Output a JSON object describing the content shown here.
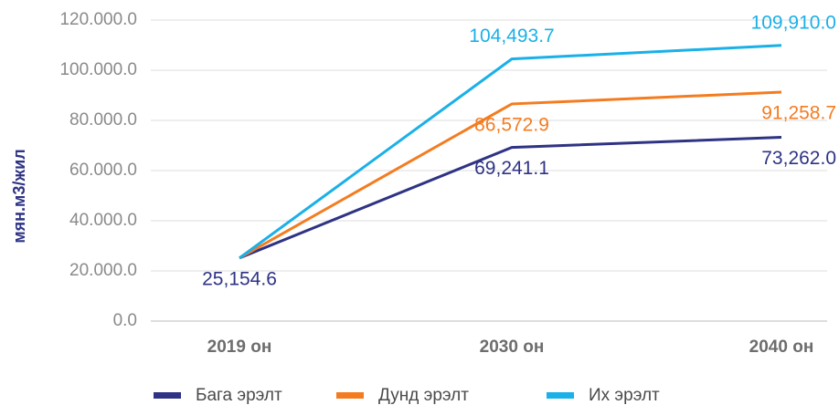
{
  "chart_data": {
    "type": "line",
    "y_label": "мян.м3/жил",
    "categories": [
      "2019 он",
      "2030 он",
      "2040 он"
    ],
    "series": [
      {
        "name": "Бага эрэлт",
        "color": "#2e3384",
        "values": [
          25154.6,
          69241.1,
          73262.0
        ],
        "value_labels": [
          "25,154.6",
          "69,241.1",
          "73,262.0"
        ]
      },
      {
        "name": "Дунд эрэлт",
        "color": "#f47c20",
        "values": [
          25154.6,
          86572.9,
          91258.7
        ],
        "value_labels": [
          null,
          "86,572.9",
          "91,258.7"
        ]
      },
      {
        "name": "Их эрэлт",
        "color": "#1ab0e8",
        "values": [
          25154.6,
          104493.7,
          109910.0
        ],
        "value_labels": [
          null,
          "104,493.7",
          "109,910.0"
        ]
      }
    ],
    "ylim": [
      0,
      120000
    ],
    "yticks": [
      {
        "value": 0,
        "label": "0.0"
      },
      {
        "value": 20000,
        "label": "20.000.0"
      },
      {
        "value": 40000,
        "label": "40.000.0"
      },
      {
        "value": 60000,
        "label": "60.000.0"
      },
      {
        "value": 80000,
        "label": "80.000.0"
      },
      {
        "value": 100000,
        "label": "100.000.0"
      },
      {
        "value": 120000,
        "label": "120.000.0"
      }
    ],
    "grid": true
  }
}
